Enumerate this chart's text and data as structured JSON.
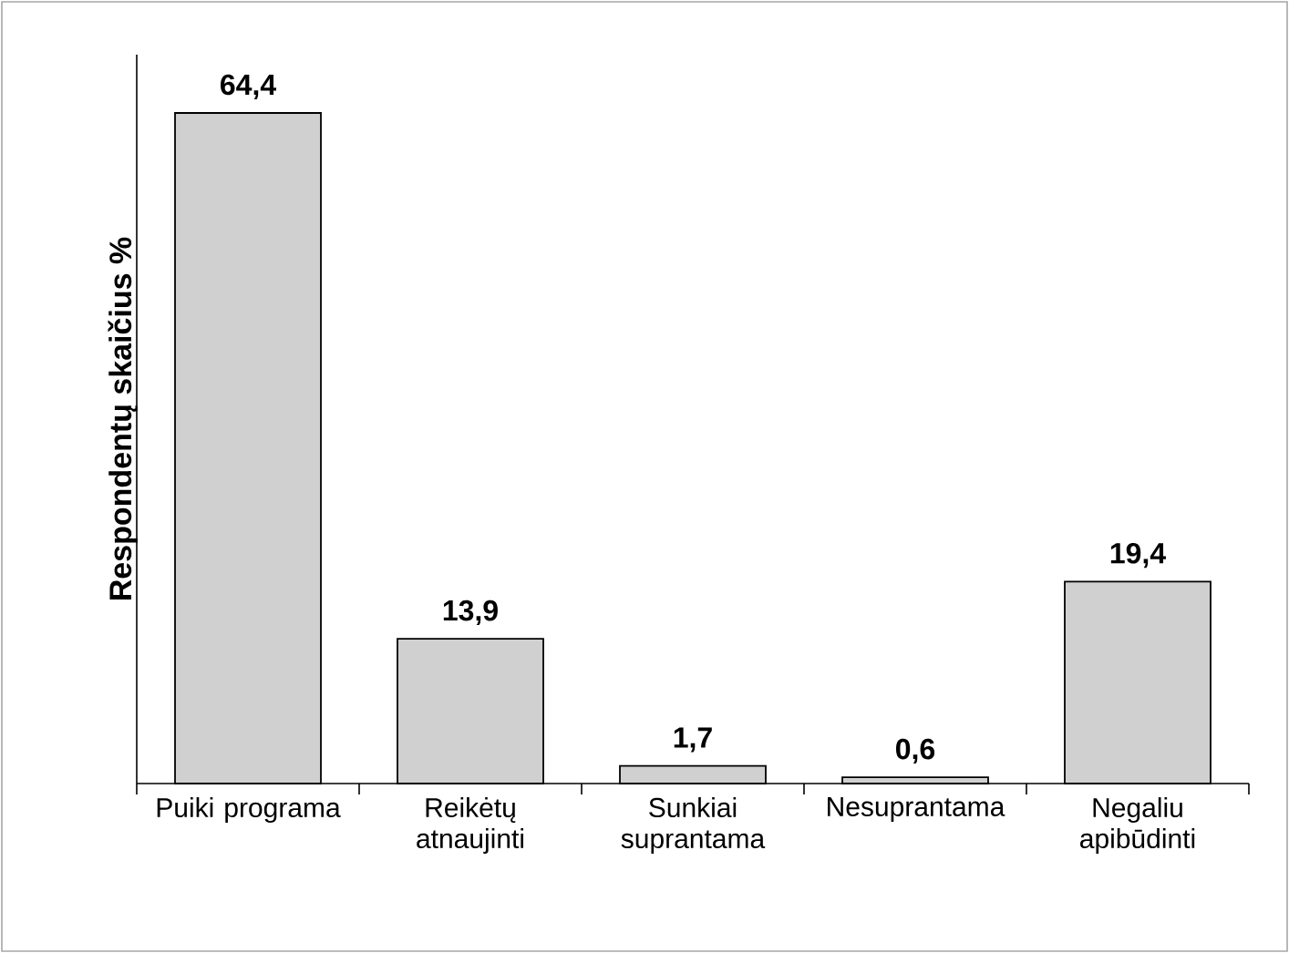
{
  "chart_data": {
    "type": "bar",
    "ylabel": "Respondentų skaičius %",
    "categories": [
      "Puiki programa",
      "Reikėtų atnaujinti",
      "Sunkiai suprantama",
      "Nesuprantama",
      "Negaliu apibūdinti"
    ],
    "values": [
      64.4,
      13.9,
      1.7,
      0.6,
      19.4
    ],
    "value_labels": [
      "64,4",
      "13,9",
      "1,7",
      "0,6",
      "19,4"
    ],
    "color": "#d0d0d0",
    "ylim": [
      0,
      70
    ],
    "tick_labels": "x"
  }
}
